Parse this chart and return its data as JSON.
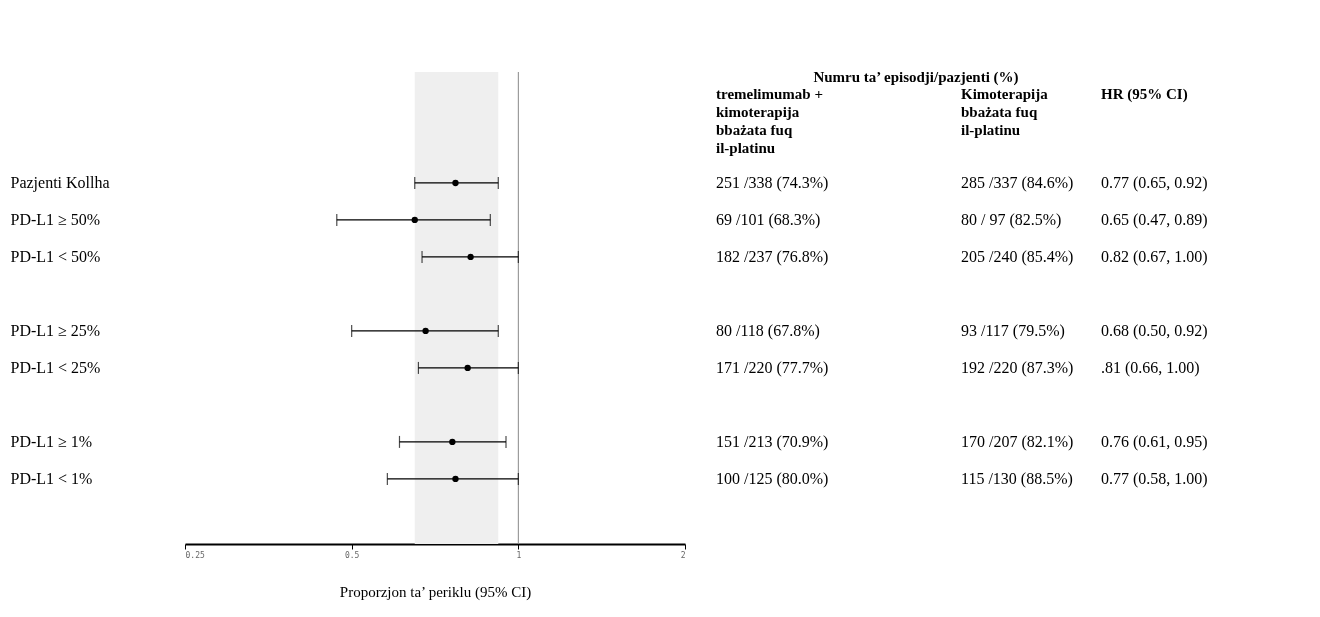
{
  "chart_data": {
    "type": "scatter",
    "orientation": "horizontal",
    "log": "x",
    "marker": "circle",
    "xlabel": "Proporzjon ta’ periklu (95% CI)",
    "categories": [
      "Pazjenti Kollha",
      "PD-L1 ≥ 50%",
      "PD-L1 < 50%",
      null,
      "PD-L1 ≥ 25%",
      "PD-L1 < 25%",
      null,
      "PD-L1 ≥ 1%",
      "PD-L1 < 1%"
    ],
    "series": [
      {
        "color": "#000000",
        "values": [
          0.77,
          0.65,
          0.82,
          null,
          0.68,
          0.81,
          null,
          0.76,
          0.77
        ],
        "errors": [
          [
            0.65,
            0.92
          ],
          [
            0.47,
            0.89
          ],
          [
            0.67,
            1.0
          ],
          null,
          [
            0.5,
            0.92
          ],
          [
            0.66,
            1.0
          ],
          null,
          [
            0.61,
            0.95
          ],
          [
            0.58,
            1.0
          ]
        ]
      }
    ],
    "xlim": [
      0.25,
      2
    ],
    "xticks": [
      0.25,
      0.5,
      1,
      2
    ],
    "ref_lines": [
      {
        "axis": "x",
        "value": 1,
        "color": "#888888"
      }
    ],
    "bands": [
      {
        "axis": "x",
        "from": 0.65,
        "to": 0.92,
        "color": "#efefef"
      }
    ],
    "annotations": [
      "Numru ta’ episodji/pazjenti (%)",
      "tremelimumab + kimoterapija bbażata fuq il-platinu",
      "Kimoterapija bbażata fuq il-platinu",
      "HR  (95% CI)",
      "251 /338 (74.3%)",
      "285 /337 (84.6%)",
      "0.77 (0.65, 0.92)",
      "69 /101 (68.3%)",
      "80 / 97 (82.5%)",
      "0.65 (0.47, 0.89)",
      "182 /237 (76.8%)",
      "205 /240 (85.4%)",
      "0.82 (0.67, 1.00)",
      "80 /118 (67.8%)",
      "93 /117 (79.5%)",
      "0.68 (0.50, 0.92)",
      "171 /220 (77.7%)",
      "192 /220 (87.3%)",
      ".81 (0.66, 1.00)",
      "151 /213 (70.9%)",
      "170 /207 (82.1%)",
      "0.76 (0.61, 0.95)",
      "100 /125 (80.0%)",
      "115 /130 (88.5%)",
      "0.77 (0.58, 1.00)"
    ]
  }
}
